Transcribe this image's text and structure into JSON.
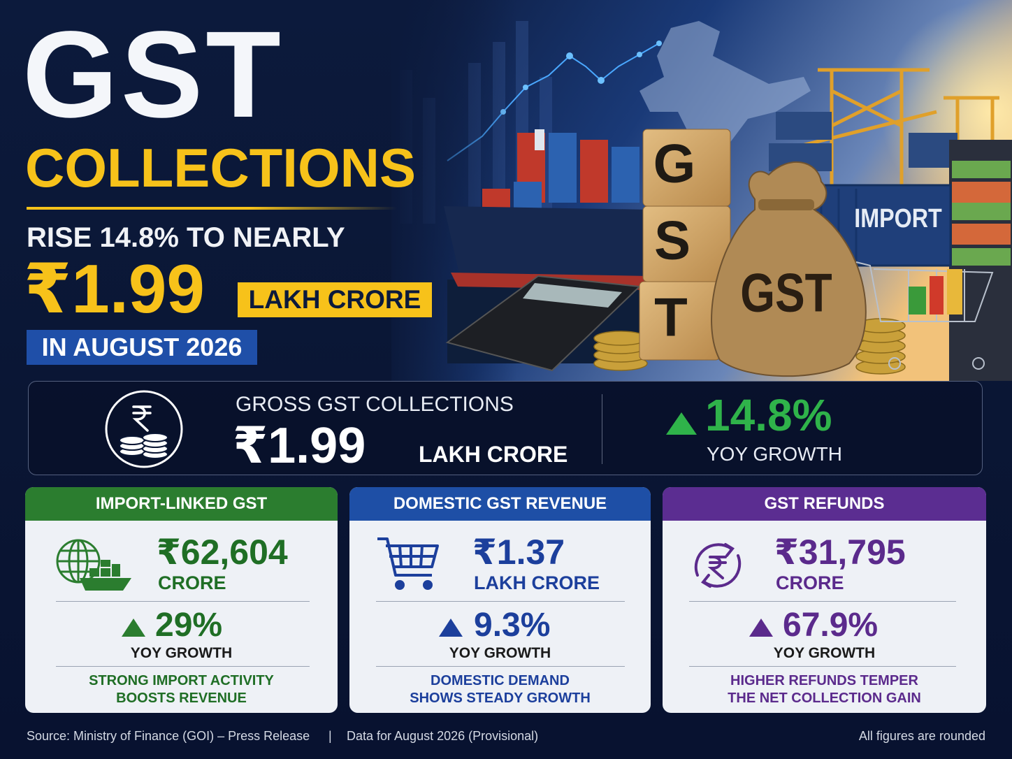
{
  "hero": {
    "title": "GST",
    "subtitle": "COLLECTIONS",
    "headline": "RISE 14.8% TO NEARLY",
    "amount": "₹1.99",
    "unit": "LAKH CRORE",
    "period": "IN AUGUST 2026"
  },
  "illustration_labels": {
    "blocks": [
      "G",
      "S",
      "T"
    ],
    "bag": "GST",
    "container": "IMPORT"
  },
  "summary": {
    "label": "GROSS GST COLLECTIONS",
    "amount": "₹1.99",
    "unit": "LAKH CRORE",
    "growth": "14.8%",
    "growth_label": "YOY GROWTH"
  },
  "cards": [
    {
      "title": "IMPORT-LINKED GST",
      "amount": "₹62,604",
      "unit": "CRORE",
      "growth": "29%",
      "growth_label": "YOY GROWTH",
      "note": [
        "STRONG IMPORT ACTIVITY",
        "BOOSTS REVENUE"
      ]
    },
    {
      "title": "DOMESTIC GST REVENUE",
      "amount": "₹1.37",
      "unit": "LAKH CRORE",
      "growth": "9.3%",
      "growth_label": "YOY GROWTH",
      "note": [
        "DOMESTIC DEMAND",
        "SHOWS STEADY GROWTH"
      ]
    },
    {
      "title": "GST REFUNDS",
      "amount": "₹31,795",
      "unit": "CRORE",
      "growth": "67.9%",
      "growth_label": "YOY GROWTH",
      "note": [
        "HIGHER REFUNDS TEMPER",
        "THE NET COLLECTION GAIN"
      ]
    }
  ],
  "footer": {
    "source": "Source: Ministry of Finance (GOI) – Press Release",
    "separator": "|",
    "data_note": "Data for August 2026 (Provisional)",
    "rounding": "All figures are rounded"
  }
}
